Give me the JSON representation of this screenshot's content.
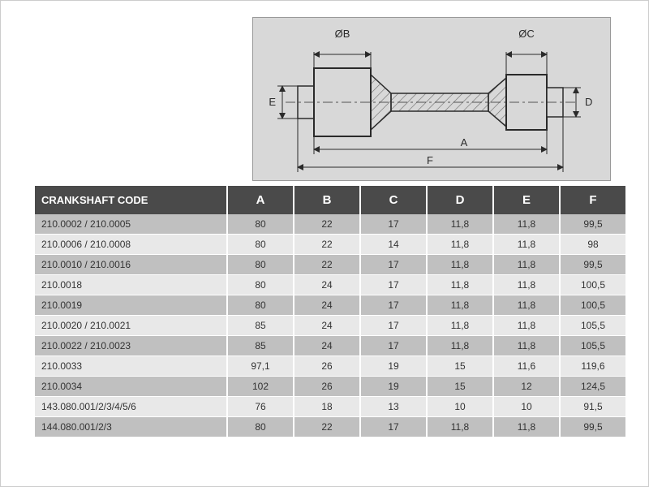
{
  "diagram": {
    "bg": "#d8d8d8",
    "line_color": "#2a2a2a",
    "hatch_color": "#6a6a6a",
    "labels": [
      "A",
      "B",
      "C",
      "D",
      "E",
      "F"
    ],
    "dia_prefix": "Ø",
    "label_fontsize": 13
  },
  "table": {
    "header_bg": "#4a4a4a",
    "header_fg": "#ffffff",
    "row_alt_a": "#c0c0c0",
    "row_alt_b": "#e8e8e8",
    "code_header": "CRANKSHAFT CODE",
    "columns": [
      "A",
      "B",
      "C",
      "D",
      "E",
      "F"
    ],
    "rows": [
      {
        "code": "210.0002 / 210.0005",
        "vals": [
          "80",
          "22",
          "17",
          "11,8",
          "11,8",
          "99,5"
        ]
      },
      {
        "code": "210.0006 / 210.0008",
        "vals": [
          "80",
          "22",
          "14",
          "11,8",
          "11,8",
          "98"
        ]
      },
      {
        "code": "210.0010 / 210.0016",
        "vals": [
          "80",
          "22",
          "17",
          "11,8",
          "11,8",
          "99,5"
        ]
      },
      {
        "code": "210.0018",
        "vals": [
          "80",
          "24",
          "17",
          "11,8",
          "11,8",
          "100,5"
        ]
      },
      {
        "code": "210.0019",
        "vals": [
          "80",
          "24",
          "17",
          "11,8",
          "11,8",
          "100,5"
        ]
      },
      {
        "code": "210.0020 / 210.0021",
        "vals": [
          "85",
          "24",
          "17",
          "11,8",
          "11,8",
          "105,5"
        ]
      },
      {
        "code": "210.0022 / 210.0023",
        "vals": [
          "85",
          "24",
          "17",
          "11,8",
          "11,8",
          "105,5"
        ]
      },
      {
        "code": "210.0033",
        "vals": [
          "97,1",
          "26",
          "19",
          "15",
          "11,6",
          "119,6"
        ]
      },
      {
        "code": "210.0034",
        "vals": [
          "102",
          "26",
          "19",
          "15",
          "12",
          "124,5"
        ]
      },
      {
        "code": "143.080.001/2/3/4/5/6",
        "vals": [
          "76",
          "18",
          "13",
          "10",
          "10",
          "91,5"
        ]
      },
      {
        "code": "144.080.001/2/3",
        "vals": [
          "80",
          "22",
          "17",
          "11,8",
          "11,8",
          "99,5"
        ]
      }
    ]
  }
}
